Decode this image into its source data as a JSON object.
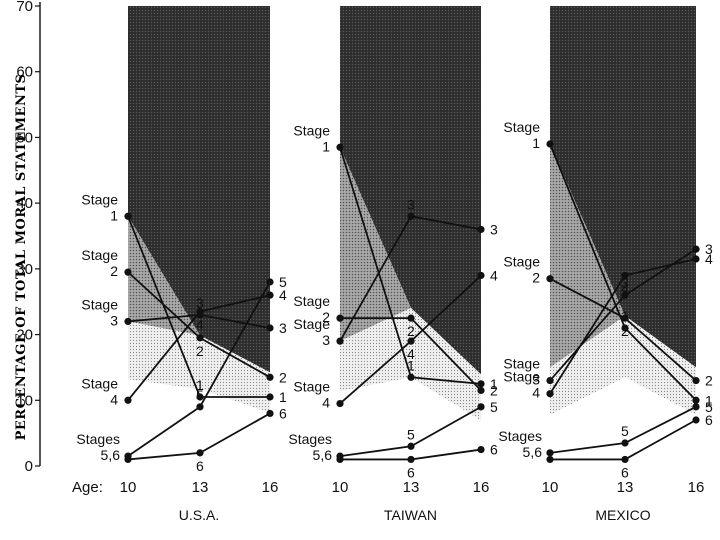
{
  "chart_data": {
    "type": "line",
    "ylabel": "PERCENTAGE OF TOTAL MORAL STATEMENTS",
    "ylim": [
      0,
      70
    ],
    "yticks": [
      0,
      10,
      20,
      30,
      40,
      50,
      60,
      70
    ],
    "age_label": "Age:",
    "ages": [
      10,
      13,
      16
    ],
    "age_tick_labels": [
      "10",
      "13",
      "16"
    ],
    "panels": [
      {
        "country": "U.S.A.",
        "series": [
          {
            "name": "1",
            "values": [
              38,
              10.5,
              10.5
            ],
            "label_left": "Stage\n1"
          },
          {
            "name": "2",
            "values": [
              29.5,
              19.5,
              13.5
            ],
            "label_left": "Stage\n2"
          },
          {
            "name": "3",
            "values": [
              22,
              23,
              21
            ],
            "label_left": "Stage\n3"
          },
          {
            "name": "4",
            "values": [
              10,
              23.5,
              26
            ],
            "label_left": "Stage\n4"
          },
          {
            "name": "5",
            "values": [
              1.5,
              9,
              28
            ],
            "label_left": "Stages\n5,6"
          },
          {
            "name": "6",
            "values": [
              1,
              2,
              8
            ]
          }
        ]
      },
      {
        "country": "TAIWAN",
        "series": [
          {
            "name": "1",
            "values": [
              48.5,
              13.5,
              12.5
            ],
            "label_left": "Stage\n1"
          },
          {
            "name": "2",
            "values": [
              22.5,
              22.5,
              11.5
            ],
            "label_left": "Stage\n2"
          },
          {
            "name": "3",
            "values": [
              19,
              38,
              36
            ],
            "label_left": "Stage\n3"
          },
          {
            "name": "4",
            "values": [
              9.5,
              19,
              29
            ],
            "label_left": "Stage\n4"
          },
          {
            "name": "5",
            "values": [
              1.5,
              3,
              9
            ],
            "label_left": "Stages\n5,6"
          },
          {
            "name": "6",
            "values": [
              1,
              1,
              2.5
            ]
          }
        ]
      },
      {
        "country": "MEXICO",
        "series": [
          {
            "name": "1",
            "values": [
              49,
              21,
              10
            ],
            "label_left": "Stage\n1"
          },
          {
            "name": "2",
            "values": [
              28.5,
              22.5,
              13
            ],
            "label_left": "Stage\n2"
          },
          {
            "name": "3",
            "values": [
              13,
              26,
              33
            ],
            "label_left": "Stage\n3"
          },
          {
            "name": "4",
            "values": [
              11,
              29,
              31.5
            ],
            "label_left": "Stage\n4"
          },
          {
            "name": "5",
            "values": [
              2,
              3.5,
              9
            ],
            "label_left": "Stages\n5,6"
          },
          {
            "name": "6",
            "values": [
              1,
              1,
              7
            ]
          }
        ]
      }
    ]
  }
}
